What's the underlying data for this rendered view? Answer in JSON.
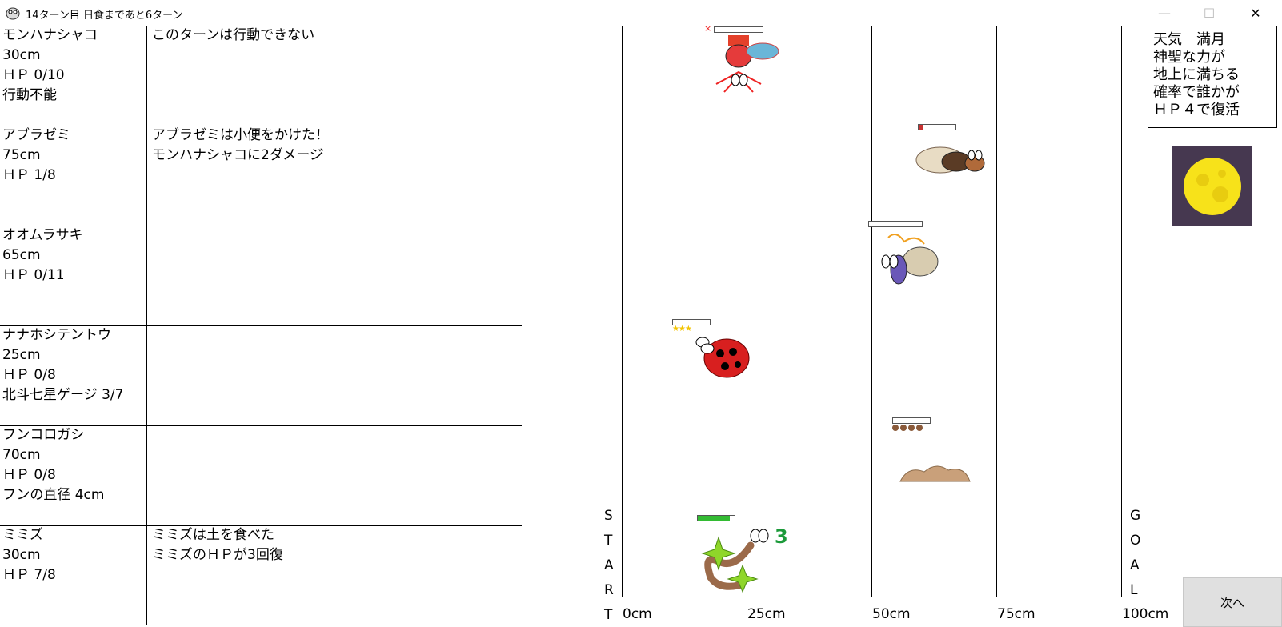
{
  "window": {
    "title": "14ターン目 日食まであと6ターン",
    "minimize_label": "—",
    "maximize_label": "☐",
    "close_label": "✕"
  },
  "insects": [
    {
      "lines": [
        "モンハナシャコ",
        "30cm",
        "ＨＰ 0/10",
        "行動不能"
      ],
      "log": [
        "このターンは行動できない"
      ]
    },
    {
      "lines": [
        "アブラゼミ",
        "75cm",
        "ＨＰ 1/8"
      ],
      "log": [
        "アブラゼミは小便をかけた！",
        "モンハナシャコに2ダメージ"
      ]
    },
    {
      "lines": [
        "オオムラサキ",
        "65cm",
        "ＨＰ 0/11"
      ],
      "log": []
    },
    {
      "lines": [
        "ナナホシテントウ",
        "25cm",
        "ＨＰ 0/8",
        "北斗七星ゲージ 3/7"
      ],
      "log": []
    },
    {
      "lines": [
        "フンコロガシ",
        "70cm",
        "ＨＰ 0/8",
        "フンの直径 4cm"
      ],
      "log": []
    },
    {
      "lines": [
        "ミミズ",
        "30cm",
        "ＨＰ 7/8"
      ],
      "log": [
        "ミミズは土を食べた",
        "ミミズのＨＰが3回復"
      ]
    }
  ],
  "track": {
    "scale_labels": [
      "0cm",
      "25cm",
      "50cm",
      "75cm",
      "100cm"
    ],
    "start_letters": [
      "S",
      "T",
      "A",
      "R",
      "T"
    ],
    "goal_letters": [
      "G",
      "O",
      "A",
      "L"
    ]
  },
  "racers": [
    {
      "name": "モンハナシャコ",
      "hp": 0,
      "hp_max": 10,
      "knocked_out_mark": "×"
    },
    {
      "name": "アブラゼミ",
      "hp": 1,
      "hp_max": 8
    },
    {
      "name": "オオムラサキ",
      "hp": 0,
      "hp_max": 11
    },
    {
      "name": "ナナホシテントウ",
      "hp": 0,
      "hp_max": 8,
      "gauge_stars": "★★★"
    },
    {
      "name": "フンコロガシ",
      "hp": 0,
      "hp_max": 8,
      "dung_balls": 4
    },
    {
      "name": "ミミズ",
      "hp": 7,
      "hp_max": 8,
      "heal_popup": "3"
    }
  ],
  "weather": {
    "lines": [
      "天気　満月",
      "神聖な力が",
      "地上に満ちる",
      "確率で誰かが",
      "ＨＰ４で復活"
    ],
    "icon": "full-moon-icon"
  },
  "next_button": {
    "label": "次へ"
  },
  "colors": {
    "hp_green": "#33bb33",
    "hp_red": "#c83232",
    "moon_bg": "#463850",
    "moon": "#f7e21a"
  }
}
